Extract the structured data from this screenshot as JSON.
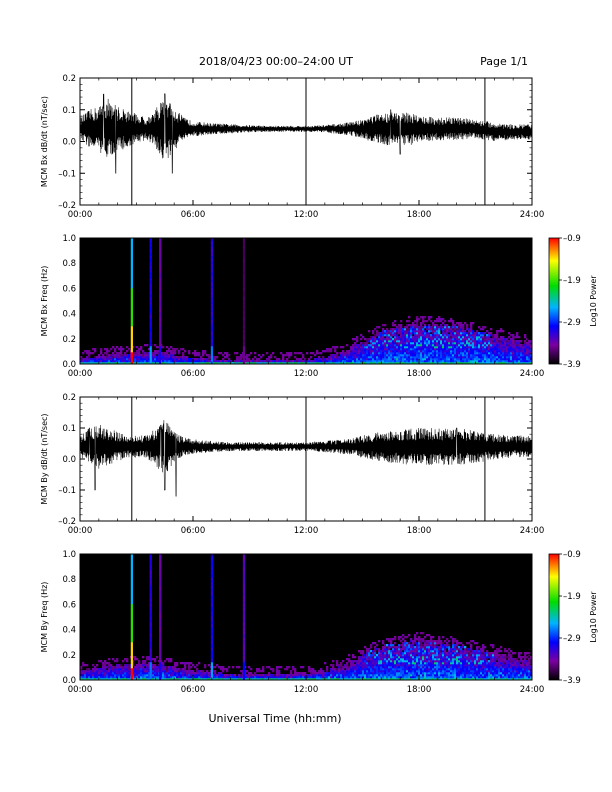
{
  "header": {
    "title": "2018/04/23  00:00–24:00 UT",
    "page": "Page 1/1"
  },
  "x_axis_title": "Universal Time (hh:mm)",
  "colors": {
    "trace": "#000000",
    "spectrogram_background": "#000000"
  },
  "chart_data": [
    {
      "type": "line",
      "ylabel": "MCM Bx dB/dt (nT/sec)",
      "xlim": [
        0,
        24
      ],
      "ylim": [
        -0.2,
        0.2
      ],
      "x_ticks": [
        "00:00",
        "06:00",
        "12:00",
        "18:00",
        "24:00"
      ],
      "y_ticks": [
        "0.2",
        "0.1",
        "0.0",
        "–0.1",
        "–0.2"
      ],
      "vertical_markers_hours": [
        2.75,
        12.0,
        21.5
      ],
      "series": [
        {
          "x_hours": [
            0.0,
            0.5,
            1.0,
            1.5,
            2.0,
            2.5,
            3.0,
            3.5,
            4.0,
            4.5,
            5.0,
            5.5,
            6.0,
            7.0,
            8.0,
            9.0,
            10.0,
            11.0,
            12.0,
            13.0,
            14.0,
            15.0,
            15.5,
            16.0,
            16.5,
            17.0,
            17.5,
            18.0,
            19.0,
            20.0,
            21.0,
            22.0,
            23.0,
            24.0
          ],
          "mean": [
            0.04,
            0.04,
            0.04,
            0.04,
            0.04,
            0.04,
            0.04,
            0.04,
            0.04,
            0.04,
            0.04,
            0.04,
            0.04,
            0.04,
            0.04,
            0.04,
            0.04,
            0.04,
            0.04,
            0.04,
            0.04,
            0.04,
            0.04,
            0.04,
            0.04,
            0.04,
            0.04,
            0.04,
            0.04,
            0.04,
            0.04,
            0.03,
            0.03,
            0.03
          ],
          "amplitude": [
            0.03,
            0.05,
            0.06,
            0.08,
            0.06,
            0.05,
            0.04,
            0.03,
            0.05,
            0.09,
            0.06,
            0.03,
            0.02,
            0.015,
            0.012,
            0.01,
            0.008,
            0.008,
            0.008,
            0.01,
            0.015,
            0.025,
            0.035,
            0.04,
            0.045,
            0.04,
            0.045,
            0.035,
            0.03,
            0.03,
            0.025,
            0.025,
            0.02,
            0.02
          ],
          "peaks": [
            {
              "x": 1.25,
              "y": 0.15
            },
            {
              "x": 1.9,
              "y": -0.1
            },
            {
              "x": 4.5,
              "y": 0.15
            },
            {
              "x": 4.9,
              "y": -0.1
            },
            {
              "x": 16.5,
              "y": 0.1
            },
            {
              "x": 17.0,
              "y": -0.04
            }
          ]
        }
      ]
    },
    {
      "type": "heatmap",
      "ylabel": "MCM Bx Freq (Hz)",
      "xlim": [
        0,
        24
      ],
      "ylim": [
        0,
        1
      ],
      "x_ticks": [
        "00:00",
        "06:00",
        "12:00",
        "18:00",
        "24:00"
      ],
      "y_ticks": [
        "1.0",
        "0.8",
        "0.6",
        "0.4",
        "0.2",
        "0.0"
      ],
      "colorbar": {
        "label": "Log10 Power",
        "range": [
          -3.9,
          -0.9
        ],
        "ticks": [
          "–0.9",
          "–1.9",
          "–2.9",
          "–3.9"
        ],
        "stops": [
          "#000000",
          "#7a00a0",
          "#0000ff",
          "#00b4ff",
          "#00dc00",
          "#ffff00",
          "#ff0000"
        ]
      },
      "activity_envelope": {
        "x_hours": [
          0,
          2,
          4,
          6,
          8,
          10,
          12,
          13,
          14,
          15,
          16,
          17,
          18,
          19,
          20,
          21,
          22,
          23,
          24
        ],
        "top_hz": [
          0.05,
          0.08,
          0.1,
          0.05,
          0.03,
          0.03,
          0.03,
          0.06,
          0.1,
          0.18,
          0.26,
          0.3,
          0.33,
          0.32,
          0.3,
          0.27,
          0.23,
          0.2,
          0.17
        ]
      },
      "vertical_streaks": [
        {
          "x": 2.75,
          "peak_level": -0.9
        },
        {
          "x": 3.75,
          "peak_level": -2.6
        },
        {
          "x": 4.25,
          "peak_level": -3.1
        },
        {
          "x": 7.0,
          "peak_level": -2.7
        },
        {
          "x": 8.7,
          "peak_level": -3.5
        }
      ]
    },
    {
      "type": "line",
      "ylabel": "MCM By dB/dt (nT/sec)",
      "xlim": [
        0,
        24
      ],
      "ylim": [
        -0.2,
        0.2
      ],
      "x_ticks": [
        "00:00",
        "06:00",
        "12:00",
        "18:00",
        "24:00"
      ],
      "y_ticks": [
        "0.2",
        "0.1",
        "0.0",
        "–0.1",
        "–0.2"
      ],
      "vertical_markers_hours": [
        2.75,
        12.0,
        21.5
      ],
      "series": [
        {
          "x_hours": [
            0.0,
            0.5,
            1.0,
            1.5,
            2.0,
            2.5,
            3.0,
            3.5,
            4.0,
            4.5,
            5.0,
            5.5,
            6.0,
            7.0,
            8.0,
            9.0,
            10.0,
            11.0,
            12.0,
            13.0,
            14.0,
            15.0,
            15.5,
            16.0,
            16.5,
            17.0,
            17.5,
            18.0,
            19.0,
            20.0,
            21.0,
            22.0,
            23.0,
            24.0
          ],
          "mean": [
            0.04,
            0.04,
            0.04,
            0.04,
            0.04,
            0.04,
            0.04,
            0.04,
            0.04,
            0.04,
            0.04,
            0.04,
            0.04,
            0.04,
            0.04,
            0.04,
            0.04,
            0.04,
            0.04,
            0.04,
            0.04,
            0.04,
            0.04,
            0.04,
            0.04,
            0.04,
            0.04,
            0.04,
            0.04,
            0.04,
            0.04,
            0.04,
            0.04,
            0.04
          ],
          "amplitude": [
            0.03,
            0.05,
            0.06,
            0.05,
            0.04,
            0.03,
            0.03,
            0.03,
            0.05,
            0.08,
            0.04,
            0.025,
            0.02,
            0.015,
            0.012,
            0.012,
            0.012,
            0.012,
            0.012,
            0.015,
            0.02,
            0.03,
            0.035,
            0.04,
            0.045,
            0.045,
            0.05,
            0.05,
            0.05,
            0.05,
            0.045,
            0.035,
            0.03,
            0.03
          ],
          "peaks": [
            {
              "x": 0.5,
              "y": 0.1
            },
            {
              "x": 0.8,
              "y": -0.1
            },
            {
              "x": 4.3,
              "y": 0.11
            },
            {
              "x": 4.5,
              "y": -0.1
            },
            {
              "x": 5.1,
              "y": -0.12
            },
            {
              "x": 20.0,
              "y": 0.1
            }
          ]
        }
      ]
    },
    {
      "type": "heatmap",
      "ylabel": "MCM By Freq (Hz)",
      "xlim": [
        0,
        24
      ],
      "ylim": [
        0,
        1
      ],
      "x_ticks": [
        "00:00",
        "06:00",
        "12:00",
        "18:00",
        "24:00"
      ],
      "y_ticks": [
        "1.0",
        "0.8",
        "0.6",
        "0.4",
        "0.2",
        "0.0"
      ],
      "colorbar": {
        "label": "Log10 Power",
        "range": [
          -3.9,
          -0.9
        ],
        "ticks": [
          "–0.9",
          "–1.9",
          "–2.9",
          "–3.9"
        ],
        "stops": [
          "#000000",
          "#7a00a0",
          "#0000ff",
          "#00b4ff",
          "#00dc00",
          "#ffff00",
          "#ff0000"
        ]
      },
      "activity_envelope": {
        "x_hours": [
          0,
          2,
          4,
          6,
          8,
          10,
          12,
          13,
          14,
          15,
          16,
          17,
          18,
          19,
          20,
          21,
          22,
          23,
          24
        ],
        "top_hz": [
          0.08,
          0.12,
          0.13,
          0.08,
          0.05,
          0.05,
          0.05,
          0.08,
          0.12,
          0.2,
          0.27,
          0.3,
          0.32,
          0.3,
          0.28,
          0.25,
          0.22,
          0.18,
          0.15
        ]
      },
      "vertical_streaks": [
        {
          "x": 2.75,
          "peak_level": -0.9
        },
        {
          "x": 3.75,
          "peak_level": -2.7
        },
        {
          "x": 4.25,
          "peak_level": -3.1
        },
        {
          "x": 7.0,
          "peak_level": -2.6
        },
        {
          "x": 8.7,
          "peak_level": -3.0
        }
      ]
    }
  ]
}
